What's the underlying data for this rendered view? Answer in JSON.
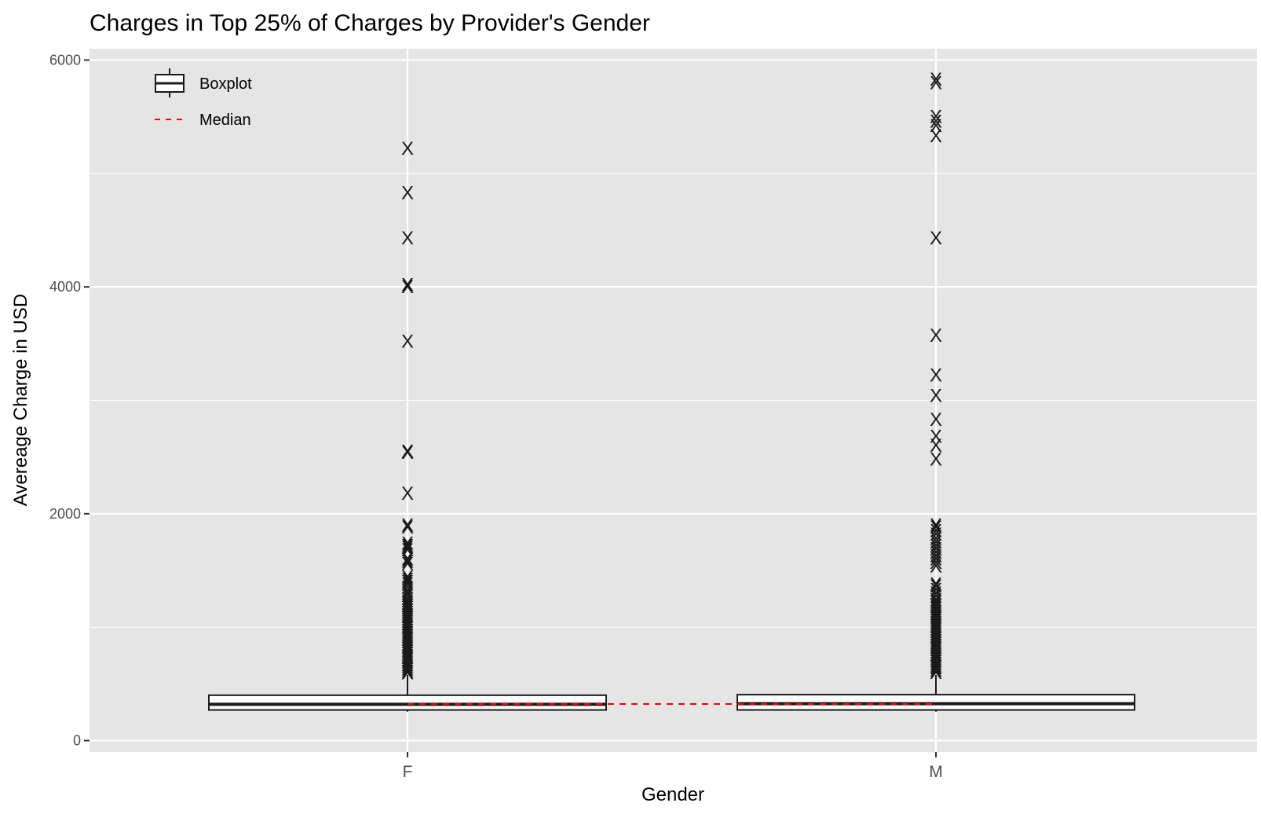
{
  "chart_data": {
    "type": "boxplot",
    "title": "Charges in Top 25% of Charges by Provider's Gender",
    "xlabel": "Gender",
    "ylabel": "Avereage Charge in USD",
    "ylim": [
      -100,
      6100
    ],
    "yticks": [
      0,
      2000,
      4000,
      6000
    ],
    "grid": true,
    "legend_position": "top-left",
    "legend": [
      {
        "key": "boxplot",
        "label": "Boxplot"
      },
      {
        "key": "median",
        "label": "Median"
      }
    ],
    "outlier_symbol": "X",
    "categories": [
      "F",
      "M"
    ],
    "boxes": [
      {
        "category": "F",
        "q1": 270,
        "median": 320,
        "q3": 400,
        "whisker_low": 255,
        "whisker_high": 580,
        "outliers": [
          5220,
          4830,
          4430,
          4020,
          4000,
          3520,
          2550,
          2540,
          2180,
          1900,
          1880,
          1740,
          1720,
          1700,
          1680,
          1600,
          1580,
          1560,
          1440,
          1420,
          1400,
          1380,
          1350,
          1320,
          1300,
          1280,
          1250,
          1230,
          1210,
          1190,
          1170,
          1150,
          1130,
          1110,
          1090,
          1070,
          1050,
          1030,
          1010,
          990,
          970,
          950,
          930,
          910,
          890,
          870,
          850,
          830,
          810,
          790,
          770,
          750,
          730,
          710,
          690,
          670,
          650,
          630,
          610,
          595
        ]
      },
      {
        "category": "M",
        "q1": 270,
        "median": 325,
        "q3": 405,
        "whisker_low": 255,
        "whisker_high": 580,
        "outliers": [
          5830,
          5800,
          5500,
          5460,
          5420,
          5330,
          4430,
          3570,
          3220,
          3040,
          2830,
          2680,
          2600,
          2480,
          1900,
          1880,
          1850,
          1820,
          1780,
          1750,
          1720,
          1690,
          1660,
          1630,
          1600,
          1570,
          1540,
          1380,
          1360,
          1330,
          1300,
          1270,
          1240,
          1220,
          1200,
          1180,
          1160,
          1140,
          1120,
          1100,
          1080,
          1060,
          1040,
          1020,
          1000,
          980,
          960,
          940,
          920,
          900,
          880,
          860,
          840,
          820,
          800,
          780,
          760,
          740,
          720,
          700,
          680,
          660,
          640,
          620,
          600
        ]
      }
    ],
    "median_line": {
      "value": 323,
      "color": "#ff0000",
      "style": "dashed"
    },
    "colors": {
      "panel_background": "#e5e5e5",
      "grid": "#ffffff",
      "box_outline": "#1a1a1a",
      "box_fill": "#ffffff",
      "median_line": "#ff0000"
    }
  }
}
